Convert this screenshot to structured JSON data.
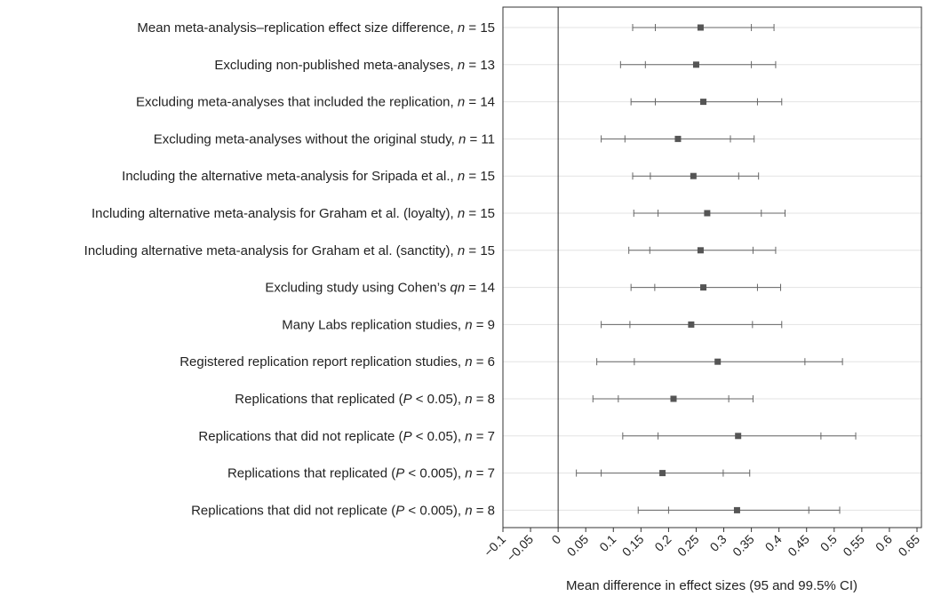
{
  "chart_data": {
    "type": "forest",
    "xlabel": "Mean difference in effect sizes (95 and 99.5% CI)",
    "xlim": [
      -0.1,
      0.65
    ],
    "xticks": [
      -0.1,
      -0.05,
      0,
      0.05,
      0.1,
      0.15,
      0.2,
      0.25,
      0.3,
      0.35,
      0.4,
      0.45,
      0.5,
      0.55,
      0.6,
      0.65
    ],
    "xtick_labels": [
      "−0.1",
      "−0.05",
      "0",
      "0.05",
      "0.1",
      "0.15",
      "0.2",
      "0.25",
      "0.3",
      "0.35",
      "0.4",
      "0.45",
      "0.5",
      "0.55",
      "0.6",
      "0.65"
    ],
    "reference_line": 0,
    "grid": "horizontal",
    "rows": [
      {
        "label": "Mean meta-analysis–replication effect size difference, ",
        "n": "15",
        "estimate": 0.258,
        "ci95": [
          0.176,
          0.35
        ],
        "ci995": [
          0.135,
          0.391
        ]
      },
      {
        "label": "Excluding non-published meta-analyses, ",
        "n": "13",
        "estimate": 0.25,
        "ci95": [
          0.158,
          0.35
        ],
        "ci995": [
          0.113,
          0.394
        ]
      },
      {
        "label": "Excluding meta-analyses that included the replication, ",
        "n": "14",
        "estimate": 0.263,
        "ci95": [
          0.176,
          0.361
        ],
        "ci995": [
          0.132,
          0.405
        ]
      },
      {
        "label": "Excluding meta-analyses without the original study, ",
        "n": "11",
        "estimate": 0.217,
        "ci95": [
          0.121,
          0.312
        ],
        "ci995": [
          0.078,
          0.355
        ]
      },
      {
        "label": "Including the alternative meta-analysis for Sripada et al., ",
        "n": "15",
        "estimate": 0.245,
        "ci95": [
          0.167,
          0.327
        ],
        "ci995": [
          0.135,
          0.363
        ]
      },
      {
        "label": "Including alternative meta-analysis for Graham et al. (loyalty), ",
        "n": "15",
        "estimate": 0.27,
        "ci95": [
          0.181,
          0.368
        ],
        "ci995": [
          0.137,
          0.411
        ]
      },
      {
        "label": "Including alternative meta-analysis for Graham et al. (sanctity), ",
        "n": "15",
        "estimate": 0.258,
        "ci95": [
          0.166,
          0.353
        ],
        "ci995": [
          0.128,
          0.394
        ]
      },
      {
        "label": "Excluding study using Cohen’s ",
        "italic": "q",
        "n": "14",
        "estimate": 0.263,
        "ci95": [
          0.175,
          0.361
        ],
        "ci995": [
          0.132,
          0.403
        ]
      },
      {
        "label": "Many Labs replication studies, ",
        "n": "9",
        "estimate": 0.241,
        "ci95": [
          0.13,
          0.352
        ],
        "ci995": [
          0.078,
          0.405
        ]
      },
      {
        "label": "Registered replication report replication studies, ",
        "n": "6",
        "estimate": 0.289,
        "ci95": [
          0.138,
          0.447
        ],
        "ci995": [
          0.07,
          0.515
        ]
      },
      {
        "label": "Replications that replicated (",
        "italic": "P",
        "label_suffix": " < 0.05), ",
        "n": "8",
        "estimate": 0.209,
        "ci95": [
          0.109,
          0.309
        ],
        "ci995": [
          0.063,
          0.353
        ]
      },
      {
        "label": "Replications that did not replicate (",
        "italic": "P",
        "label_suffix": " < 0.05), ",
        "n": "7",
        "estimate": 0.326,
        "ci95": [
          0.181,
          0.476
        ],
        "ci995": [
          0.117,
          0.539
        ]
      },
      {
        "label": "Replications that replicated (",
        "italic": "P",
        "label_suffix": " < 0.005), ",
        "n": "7",
        "estimate": 0.189,
        "ci95": [
          0.078,
          0.299
        ],
        "ci995": [
          0.033,
          0.347
        ]
      },
      {
        "label": "Replications that did not replicate (",
        "italic": "P",
        "label_suffix": " < 0.005), ",
        "n": "8",
        "estimate": 0.324,
        "ci95": [
          0.2,
          0.454
        ],
        "ci995": [
          0.145,
          0.51
        ]
      }
    ]
  }
}
